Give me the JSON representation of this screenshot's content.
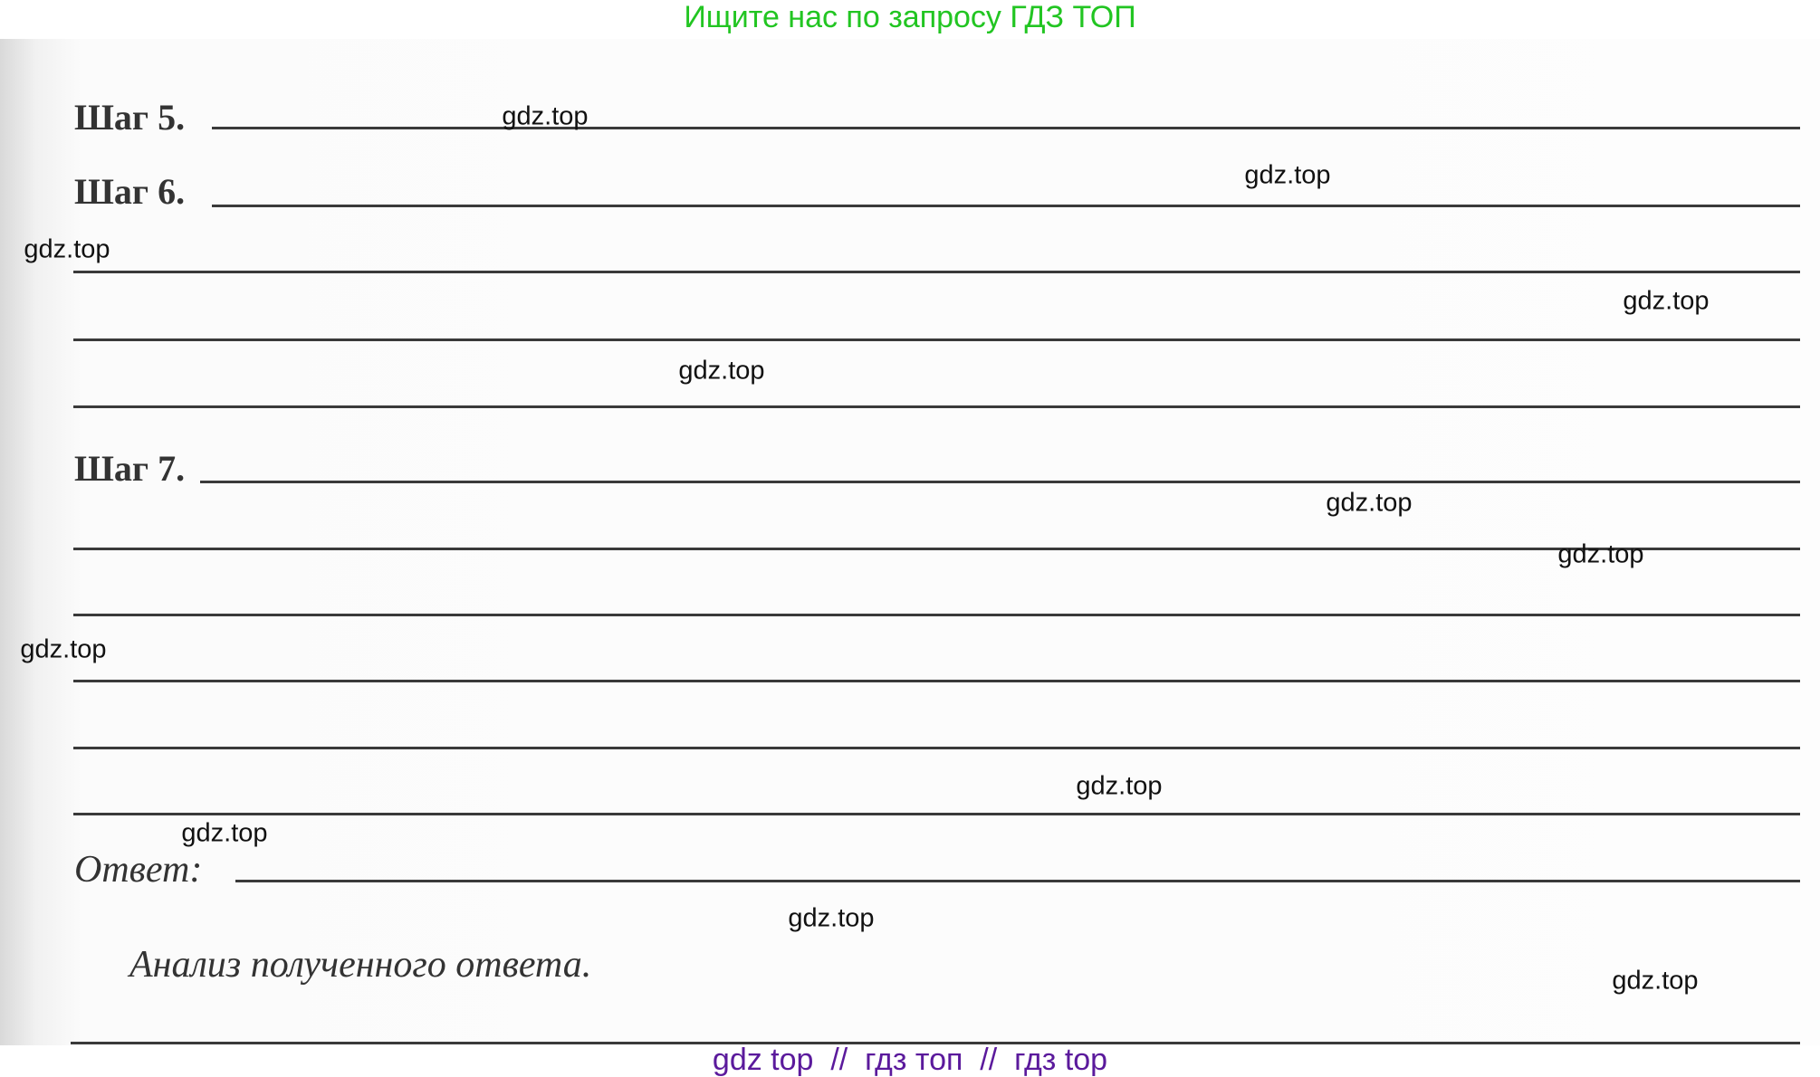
{
  "banner": "Ищите нас по запросу ГДЗ ТОП",
  "steps": {
    "step5": "Шаг 5.",
    "step6": "Шаг 6.",
    "step7": "Шаг 7."
  },
  "answer_label": "Ответ:",
  "analysis_heading": "Анализ полученного ответа.",
  "watermark": "gdz.top",
  "footer": "gdz top  //  гдз топ  //  гдз top"
}
